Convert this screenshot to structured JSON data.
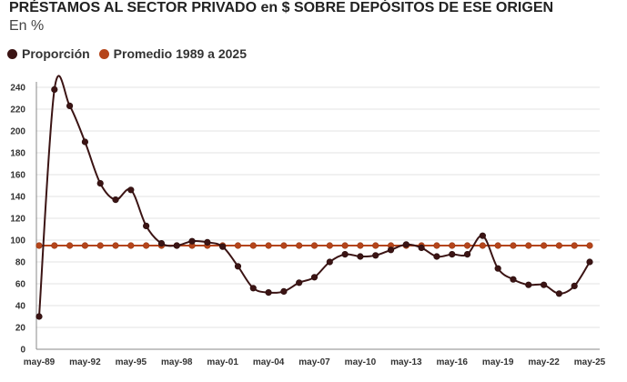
{
  "header": {
    "title": "PRÉSTAMOS AL SECTOR PRIVADO en $ SOBRE DEPÓSITOS DE ESE ORIGEN",
    "subtitle": "En %"
  },
  "legend": [
    {
      "label": "Proporción",
      "color": "#3b1414"
    },
    {
      "label": "Promedio 1989 a 2025",
      "color": "#b5451b"
    }
  ],
  "chart_data": {
    "type": "line",
    "title": "PRÉSTAMOS AL SECTOR PRIVADO en $ SOBRE DEPÓSITOS DE ESE ORIGEN",
    "subtitle": "En %",
    "x": [
      "may-89",
      "may-90",
      "may-91",
      "may-92",
      "may-93",
      "may-94",
      "may-95",
      "may-96",
      "may-97",
      "may-98",
      "may-99",
      "may-00",
      "may-01",
      "may-02",
      "may-03",
      "may-04",
      "may-05",
      "may-06",
      "may-07",
      "may-08",
      "may-09",
      "may-10",
      "may-11",
      "may-12",
      "may-13",
      "may-14",
      "may-15",
      "may-16",
      "may-17",
      "may-18",
      "may-19",
      "may-20",
      "may-21",
      "may-22",
      "may-23",
      "may-24",
      "may-25"
    ],
    "x_tick_labels": [
      "may-89",
      "may-92",
      "may-95",
      "may-98",
      "may-01",
      "may-04",
      "may-07",
      "may-10",
      "may-13",
      "may-16",
      "may-19",
      "may-22",
      "may-25"
    ],
    "series": [
      {
        "name": "Proporción",
        "color": "#3b1414",
        "values": [
          30,
          238,
          223,
          190,
          152,
          137,
          146,
          113,
          97,
          95,
          99,
          98,
          94,
          76,
          56,
          52,
          53,
          61,
          66,
          80,
          87,
          85,
          86,
          91,
          96,
          93,
          85,
          87,
          87,
          104,
          74,
          64,
          59,
          59,
          51,
          58,
          80
        ]
      },
      {
        "name": "Promedio 1989 a 2025",
        "color": "#b5451b",
        "values": [
          95,
          95,
          95,
          95,
          95,
          95,
          95,
          95,
          95,
          95,
          95,
          95,
          95,
          95,
          95,
          95,
          95,
          95,
          95,
          95,
          95,
          95,
          95,
          95,
          95,
          95,
          95,
          95,
          95,
          95,
          95,
          95,
          95,
          95,
          95,
          95,
          95
        ]
      }
    ],
    "ylim": [
      0,
      240
    ],
    "yticks": [
      0,
      20,
      40,
      60,
      80,
      100,
      120,
      140,
      160,
      180,
      200,
      220,
      240
    ],
    "grid": true,
    "legend_position": "top-left"
  }
}
